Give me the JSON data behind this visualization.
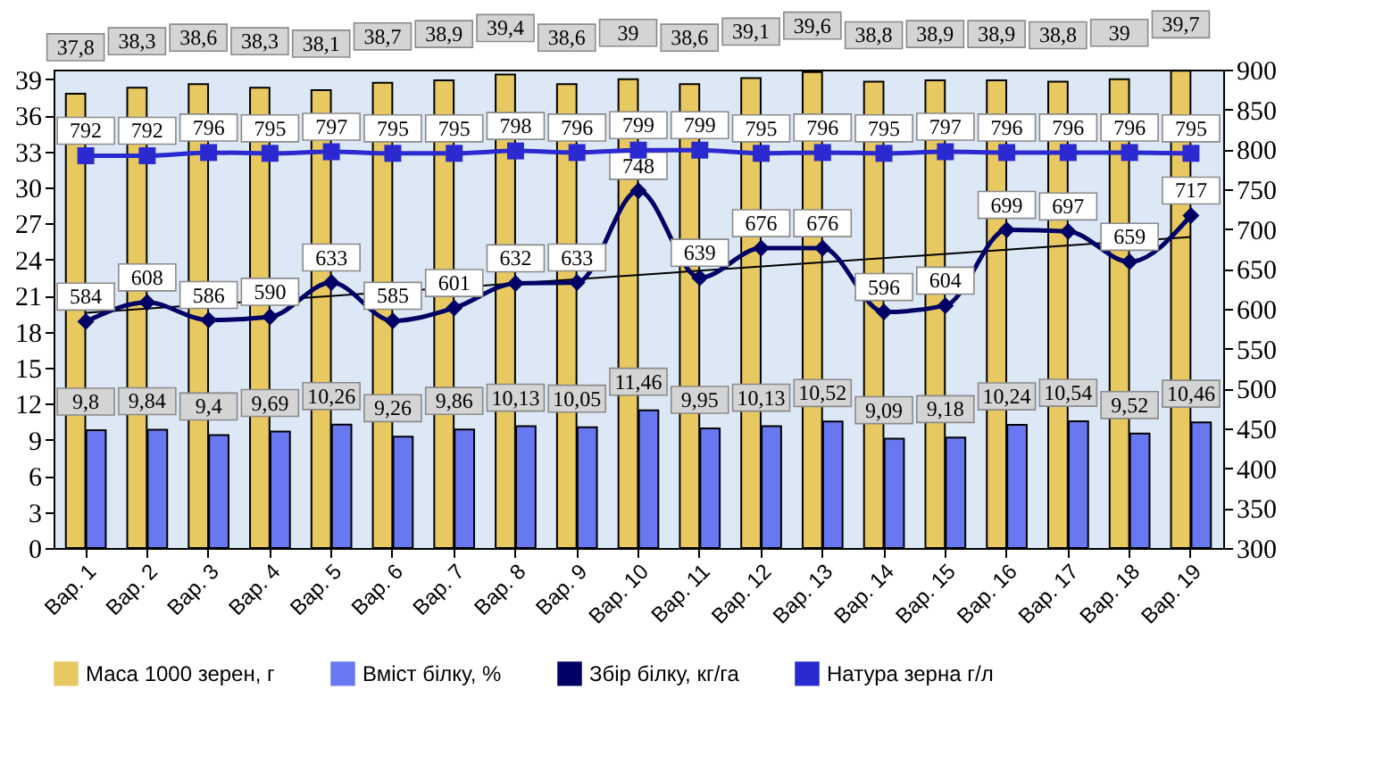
{
  "chart_data": {
    "type": "bar",
    "categories": [
      "Вар. 1",
      "Вар. 2",
      "Вар. 3",
      "Вар. 4",
      "Вар. 5",
      "Вар. 6",
      "Вар. 7",
      "Вар. 8",
      "Вар. 9",
      "Вар. 10",
      "Вар. 11",
      "Вар. 12",
      "Вар. 13",
      "Вар. 14",
      "Вар. 15",
      "Вар. 16",
      "Вар. 17",
      "Вар. 18",
      "Вар. 19"
    ],
    "series": [
      {
        "name": "Маса 1000 зерен, г",
        "color": "#e8c860",
        "values": [
          37.8,
          38.3,
          38.6,
          38.3,
          38.1,
          38.7,
          38.9,
          39.4,
          38.6,
          39,
          38.6,
          39.1,
          39.6,
          38.8,
          38.9,
          38.9,
          38.8,
          39,
          39.7
        ],
        "value_labels": [
          "37,8",
          "38,3",
          "38,6",
          "38,3",
          "38,1",
          "38,7",
          "38,9",
          "39,4",
          "38,6",
          "39",
          "38,6",
          "39,1",
          "39,6",
          "38,8",
          "38,9",
          "38,9",
          "38,8",
          "39",
          "39,7"
        ]
      },
      {
        "name": "Вміст білку, %",
        "color": "#6878f0",
        "values": [
          9.8,
          9.84,
          9.4,
          9.69,
          10.26,
          9.26,
          9.86,
          10.13,
          10.05,
          11.46,
          9.95,
          10.13,
          10.52,
          9.09,
          9.18,
          10.24,
          10.54,
          9.52,
          10.46
        ],
        "value_labels": [
          "9,8",
          "9,84",
          "9,4",
          "9,69",
          "10,26",
          "9,26",
          "9,86",
          "10,13",
          "10,05",
          "11,46",
          "9,95",
          "10,13",
          "10,52",
          "9,09",
          "9,18",
          "10,24",
          "10,54",
          "9,52",
          "10,46"
        ]
      },
      {
        "name": "Збір білку, кг/га",
        "type": "line",
        "axis": "y2",
        "marker": "diamond",
        "color": "#000066",
        "values": [
          584,
          608,
          586,
          590,
          633,
          585,
          601,
          632,
          633,
          748,
          639,
          676,
          676,
          596,
          604,
          699,
          697,
          659,
          717
        ],
        "value_labels": [
          "584",
          "608",
          "586",
          "590",
          "633",
          "585",
          "601",
          "632",
          "633",
          "748",
          "639",
          "676",
          "676",
          "596",
          "604",
          "699",
          "697",
          "659",
          "717"
        ]
      },
      {
        "name": "Натура зерна г/л",
        "type": "line",
        "axis": "y2",
        "marker": "square",
        "color": "#2a2ad0",
        "values": [
          792,
          792,
          796,
          795,
          797,
          795,
          795,
          798,
          796,
          799,
          799,
          795,
          796,
          795,
          797,
          796,
          796,
          796,
          795
        ],
        "value_labels": [
          "792",
          "792",
          "796",
          "795",
          "797",
          "795",
          "795",
          "798",
          "796",
          "799",
          "799",
          "795",
          "796",
          "795",
          "797",
          "796",
          "796",
          "796",
          "795"
        ]
      },
      {
        "type": "line",
        "axis": "y2",
        "color": "#000000",
        "x": [
          "Вар. 1",
          "Вар. 19"
        ],
        "values": [
          595,
          690
        ]
      }
    ],
    "ylim": [
      0,
      39.8
    ],
    "yticks": [
      0,
      3,
      6,
      9,
      12,
      15,
      18,
      21,
      24,
      27,
      30,
      33,
      36,
      39
    ],
    "y2lim": [
      300,
      900
    ],
    "y2ticks": [
      300,
      350,
      400,
      450,
      500,
      550,
      600,
      650,
      700,
      750,
      800,
      850,
      900
    ],
    "legend": "bottom"
  }
}
